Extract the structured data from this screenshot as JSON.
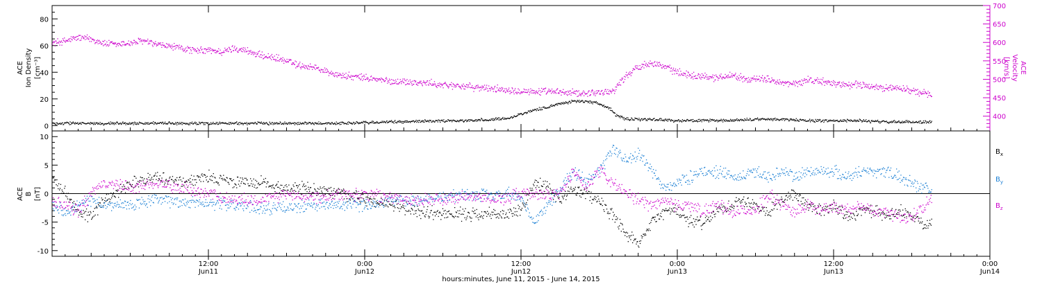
{
  "chart_data": [
    {
      "type": "scatter",
      "title": "",
      "xlabel": "hours:minutes, June 11, 2015 - June 14, 2015",
      "ylabel_left": "ACE Ion Density [cm^-3]",
      "ylabel_left_lines": [
        "ACE",
        "Ion Density",
        "[cm⁻³]"
      ],
      "ylabel_right": "ACE Velocity [km/s]",
      "ylabel_right_lines": [
        "ACE",
        "Velocity",
        "[km/s]"
      ],
      "xlim_hours": [
        0,
        72
      ],
      "ylim_left": [
        -4,
        90
      ],
      "ylim_right": [
        360,
        700
      ],
      "yticks_left": [
        0,
        20,
        40,
        60,
        80
      ],
      "yticks_right": [
        400,
        450,
        500,
        550,
        600,
        650,
        700
      ],
      "series": [
        {
          "name": "Ion Density",
          "axis": "left",
          "color": "#000000",
          "x": [
            0,
            2,
            4,
            6,
            8,
            10,
            12,
            14,
            16,
            18,
            20,
            22,
            24,
            26,
            28,
            30,
            32,
            34,
            35,
            36,
            37,
            38,
            39,
            40,
            41,
            42,
            42.8,
            43.3,
            44,
            46,
            48,
            50,
            52,
            54,
            56,
            58,
            60,
            62,
            64,
            66,
            67.5
          ],
          "y": [
            2,
            2,
            2,
            2,
            2,
            2,
            2,
            2,
            2,
            2,
            2,
            2,
            2.5,
            3,
            3.5,
            4,
            4,
            5,
            6,
            9,
            12,
            14,
            17,
            18.5,
            18.5,
            17,
            13,
            8,
            5,
            5,
            4,
            4,
            4,
            5,
            5,
            4,
            4,
            4,
            3,
            3,
            3
          ]
        },
        {
          "name": "Velocity",
          "axis": "right",
          "color": "#cc00cc",
          "x": [
            0,
            1,
            2,
            3,
            4,
            5,
            6,
            7,
            8,
            9,
            10,
            11,
            12,
            13,
            14,
            15,
            16,
            17,
            18,
            19,
            20,
            21,
            22,
            23,
            24,
            25,
            26,
            27,
            28,
            29,
            30,
            31,
            32,
            33,
            34,
            35,
            36,
            37,
            38,
            39,
            40,
            41,
            42,
            43,
            44,
            45,
            46,
            47,
            48,
            49,
            50,
            51,
            52,
            53,
            54,
            55,
            56,
            57,
            58,
            59,
            60,
            61,
            62,
            63,
            64,
            65,
            66,
            67,
            67.5
          ],
          "y": [
            600,
            605,
            615,
            610,
            598,
            595,
            600,
            605,
            595,
            590,
            585,
            578,
            580,
            575,
            585,
            578,
            565,
            560,
            550,
            538,
            535,
            522,
            512,
            508,
            505,
            500,
            495,
            495,
            492,
            490,
            485,
            485,
            480,
            478,
            475,
            473,
            470,
            468,
            467,
            466,
            464,
            464,
            466,
            468,
            510,
            535,
            548,
            535,
            520,
            512,
            510,
            505,
            513,
            505,
            500,
            502,
            490,
            488,
            500,
            495,
            490,
            485,
            488,
            478,
            478,
            478,
            470,
            462,
            458
          ]
        }
      ]
    },
    {
      "type": "scatter",
      "title": "",
      "xlabel": "hours:minutes, June 11, 2015 - June 14, 2015",
      "ylabel": "ACE B [nT]",
      "ylabel_lines": [
        "ACE",
        "B",
        "[nT]"
      ],
      "xlim_hours": [
        0,
        72
      ],
      "ylim": [
        -11,
        11
      ],
      "yticks": [
        -10,
        -5,
        0,
        5,
        10
      ],
      "zero_line": true,
      "legend_position": "right",
      "series": [
        {
          "name": "Bx",
          "label_main": "B",
          "label_sub": "x",
          "color": "#000000",
          "x": [
            0,
            1,
            2,
            3,
            4,
            6,
            8,
            10,
            12,
            14,
            16,
            18,
            20,
            22,
            24,
            26,
            28,
            30,
            32,
            34,
            35,
            36,
            37,
            38,
            39,
            40,
            41,
            42,
            43,
            44,
            45,
            46,
            47,
            48,
            49,
            50,
            51,
            52,
            53,
            54,
            55,
            56,
            57,
            58,
            59,
            60,
            61,
            62,
            63,
            64,
            65,
            66,
            67,
            67.5
          ],
          "y": [
            3,
            0,
            -3,
            -4,
            -1,
            2,
            3,
            2,
            3,
            2,
            2,
            1,
            1,
            0,
            -1,
            -2,
            -3,
            -3.5,
            -3.5,
            -3.5,
            -3.5,
            -3,
            2,
            1,
            -1,
            1,
            0,
            -1,
            -4,
            -7,
            -9,
            -5,
            -3,
            -3,
            -5,
            -5,
            -3,
            -2,
            -1,
            -2,
            -3,
            -1,
            0,
            -2,
            -3,
            -2,
            -4,
            -3,
            -3,
            -4,
            -3,
            -4,
            -5,
            -5
          ]
        },
        {
          "name": "By",
          "label_main": "B",
          "label_sub": "y",
          "color": "#1a7fd4",
          "x": [
            0,
            1,
            2,
            3,
            4,
            6,
            8,
            10,
            12,
            14,
            16,
            18,
            20,
            22,
            24,
            26,
            28,
            30,
            32,
            34,
            35,
            36,
            37,
            38,
            39,
            40,
            41,
            42,
            43,
            44,
            45,
            46,
            47,
            48,
            49,
            50,
            51,
            52,
            53,
            54,
            55,
            56,
            57,
            58,
            59,
            60,
            61,
            62,
            63,
            64,
            65,
            66,
            67,
            67.5
          ],
          "y": [
            -2,
            -3,
            -2,
            -1,
            -2,
            -2,
            -1,
            -1.5,
            -1.5,
            -2,
            -2.5,
            -2.5,
            -2,
            -2,
            -2,
            -1,
            -1,
            -0.5,
            0,
            -0.5,
            0,
            -1,
            -5,
            -2,
            1,
            4,
            2,
            4,
            8,
            6,
            7,
            4,
            1,
            2,
            3,
            4,
            4,
            3,
            3,
            4,
            3,
            4,
            3,
            4,
            4,
            4,
            3,
            4,
            4,
            4,
            3,
            2,
            1,
            1
          ]
        },
        {
          "name": "Bz",
          "label_main": "B",
          "label_sub": "z",
          "color": "#cc00cc",
          "x": [
            0,
            1,
            2,
            3,
            4,
            6,
            8,
            10,
            12,
            14,
            16,
            18,
            20,
            22,
            24,
            26,
            28,
            30,
            32,
            34,
            35,
            36,
            37,
            38,
            39,
            40,
            41,
            42,
            43,
            44,
            45,
            46,
            47,
            48,
            49,
            50,
            51,
            52,
            53,
            54,
            55,
            56,
            57,
            58,
            59,
            60,
            61,
            62,
            63,
            64,
            65,
            66,
            67,
            67.5
          ],
          "y": [
            -1,
            -2,
            -3,
            0,
            2,
            1,
            2,
            1,
            0,
            -1,
            -1,
            0,
            -0.5,
            0,
            0,
            -0.5,
            -1,
            -1,
            -0.5,
            -1,
            -0.5,
            0,
            0,
            0,
            0,
            4,
            1,
            4,
            2,
            0,
            -1,
            -2,
            -1,
            -2,
            -2,
            -3,
            -2,
            -3,
            -3,
            -3,
            0,
            -2,
            -3,
            -2,
            -3,
            -2,
            -3,
            -2,
            -3,
            -3,
            -4,
            -4,
            -2,
            -1
          ]
        }
      ]
    }
  ],
  "x_axis": {
    "tick_hours": [
      0,
      12,
      24,
      36,
      48,
      60,
      72
    ],
    "major_labels": [
      {
        "hour": 12,
        "time": "12:00",
        "date": "Jun11"
      },
      {
        "hour": 24,
        "time": "0:00",
        "date": "Jun12"
      },
      {
        "hour": 36,
        "time": "12:00",
        "date": "Jun12"
      },
      {
        "hour": 48,
        "time": "0:00",
        "date": "Jun13"
      },
      {
        "hour": 60,
        "time": "12:00",
        "date": "Jun13"
      },
      {
        "hour": 72,
        "time": "0:00",
        "date": "Jun14"
      }
    ]
  }
}
